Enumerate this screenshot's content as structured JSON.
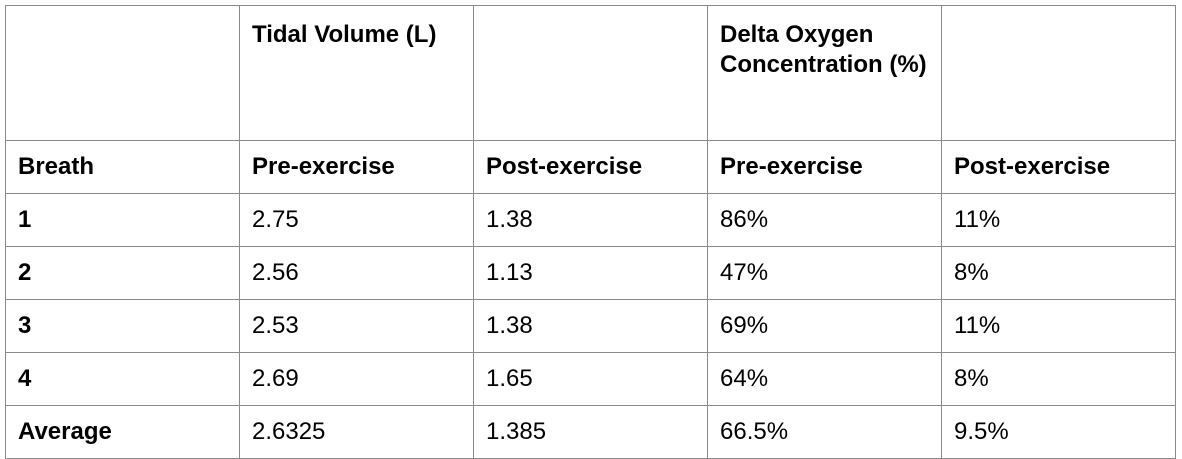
{
  "table": {
    "header_row_1": [
      "",
      "Tidal Volume (L)",
      "",
      "Delta Oxygen Concentration (%)",
      ""
    ],
    "header_row_2": [
      "Breath",
      "Pre-exercise",
      "Post-exercise",
      "Pre-exercise",
      "Post-exercise"
    ],
    "rows": [
      [
        "1",
        "2.75",
        "1.38",
        "86%",
        "11%"
      ],
      [
        "2",
        "2.56",
        "1.13",
        "47%",
        "8%"
      ],
      [
        "3",
        "2.53",
        "1.38",
        "69%",
        "11%"
      ],
      [
        "4",
        "2.69",
        "1.65",
        "64%",
        "8%"
      ],
      [
        "Average",
        "2.6325",
        "1.385",
        "66.5%",
        "9.5%"
      ]
    ]
  }
}
